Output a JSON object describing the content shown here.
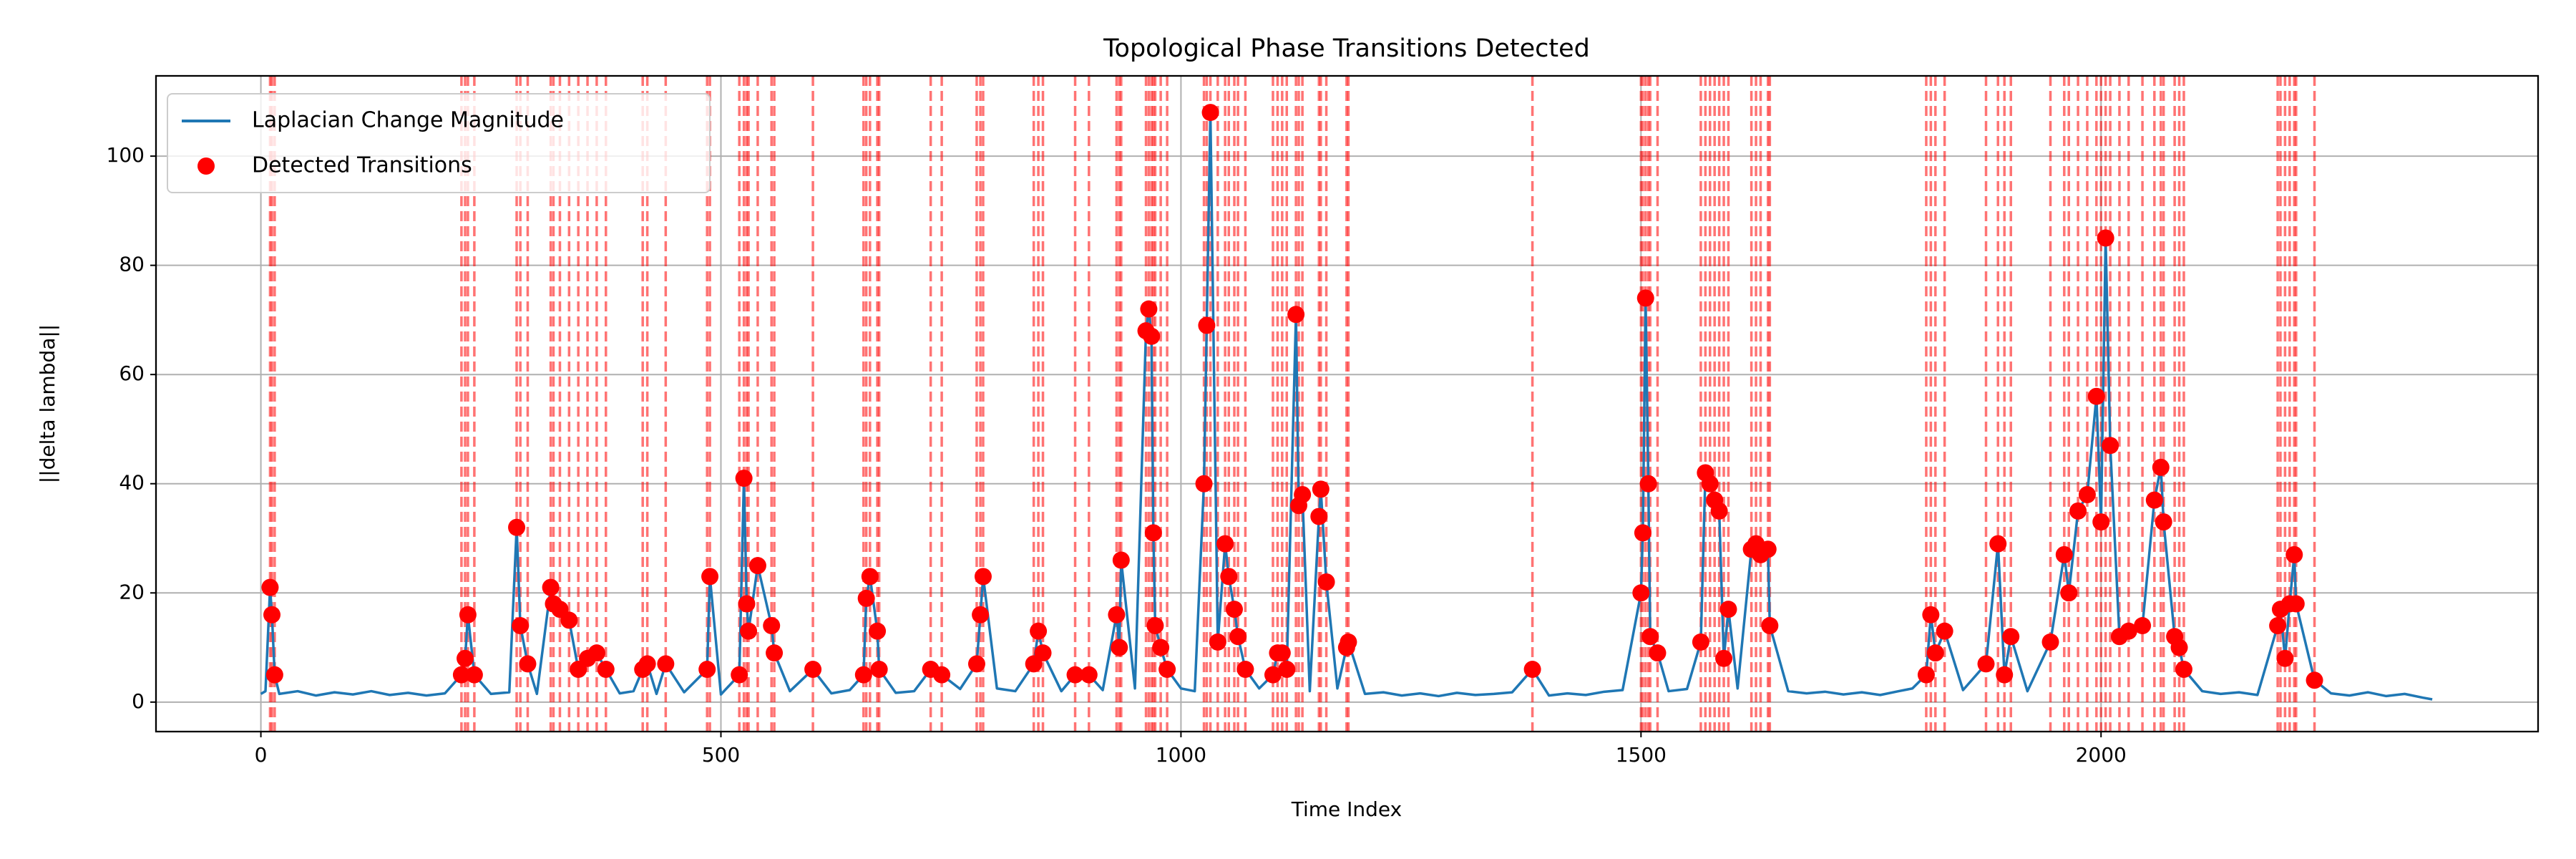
{
  "chart_data": {
    "type": "line",
    "title": "Topological Phase Transitions Detected",
    "xlabel": "Time Index",
    "ylabel": "||delta lambda||",
    "xlim": [
      -114,
      2475
    ],
    "ylim": [
      -5.4,
      114.7
    ],
    "xticks": [
      0,
      500,
      1000,
      1500,
      2000
    ],
    "yticks": [
      0,
      20,
      40,
      60,
      80,
      100
    ],
    "grid": true,
    "legend": "upper left",
    "series": [
      {
        "name": "Laplacian Change Magnitude",
        "type": "line",
        "color": "#1f77b4",
        "x": [
          0,
          5,
          10,
          12,
          15,
          20,
          40,
          60,
          80,
          100,
          120,
          140,
          160,
          180,
          200,
          218,
          222,
          225,
          232,
          250,
          270,
          278,
          282,
          290,
          300,
          315,
          318,
          325,
          335,
          345,
          355,
          365,
          375,
          390,
          405,
          415,
          420,
          430,
          440,
          460,
          485,
          488,
          500,
          520,
          525,
          528,
          530,
          540,
          555,
          558,
          575,
          600,
          620,
          640,
          655,
          658,
          662,
          670,
          672,
          690,
          710,
          728,
          740,
          760,
          778,
          782,
          785,
          800,
          820,
          840,
          845,
          850,
          870,
          885,
          900,
          915,
          930,
          933,
          935,
          950,
          962,
          965,
          968,
          970,
          972,
          978,
          985,
          1000,
          1015,
          1025,
          1028,
          1032,
          1040,
          1048,
          1052,
          1058,
          1062,
          1070,
          1085,
          1100,
          1105,
          1110,
          1115,
          1125,
          1128,
          1132,
          1140,
          1150,
          1152,
          1158,
          1170,
          1180,
          1182,
          1200,
          1220,
          1240,
          1260,
          1280,
          1300,
          1320,
          1340,
          1360,
          1382,
          1400,
          1420,
          1440,
          1460,
          1480,
          1500,
          1502,
          1505,
          1508,
          1510,
          1518,
          1530,
          1550,
          1565,
          1570,
          1575,
          1580,
          1585,
          1590,
          1595,
          1605,
          1620,
          1625,
          1630,
          1638,
          1640,
          1660,
          1680,
          1700,
          1720,
          1740,
          1760,
          1780,
          1795,
          1810,
          1815,
          1820,
          1830,
          1850,
          1875,
          1888,
          1895,
          1902,
          1920,
          1945,
          1960,
          1965,
          1975,
          1985,
          1995,
          2000,
          2005,
          2010,
          2020,
          2030,
          2045,
          2058,
          2065,
          2068,
          2080,
          2085,
          2090,
          2110,
          2130,
          2150,
          2170,
          2192,
          2195,
          2200,
          2205,
          2210,
          2212,
          2232,
          2250,
          2270,
          2290,
          2310,
          2330,
          2350,
          2360
        ],
        "values": [
          1.5,
          2,
          21,
          16,
          5,
          1.5,
          2,
          1.2,
          1.8,
          1.4,
          2,
          1.3,
          1.7,
          1.2,
          1.6,
          5,
          8,
          16,
          5,
          1.5,
          1.8,
          32,
          14,
          7,
          1.5,
          21,
          18,
          17,
          15,
          6,
          8,
          9,
          6,
          1.6,
          2,
          6,
          7,
          1.5,
          7,
          1.8,
          6,
          23,
          1.4,
          5,
          41,
          18,
          13,
          25,
          14,
          9,
          2,
          6,
          1.6,
          2.2,
          5,
          19,
          23,
          13,
          6,
          1.7,
          2,
          6,
          5,
          2.4,
          7,
          16,
          23,
          2.5,
          2,
          7,
          13,
          9,
          2,
          5,
          5,
          2.2,
          16,
          10,
          26,
          2.5,
          68,
          72,
          67,
          31,
          14,
          10,
          6,
          2.5,
          2,
          40,
          69,
          108,
          11,
          29,
          23,
          17,
          12,
          6,
          2.5,
          5,
          9,
          9,
          6,
          71,
          36,
          38,
          2,
          34,
          39,
          22,
          2.5,
          10,
          11,
          1.5,
          1.8,
          1.2,
          1.6,
          1.1,
          1.7,
          1.3,
          1.5,
          1.8,
          6,
          1.2,
          1.6,
          1.3,
          1.9,
          2.2,
          20,
          31,
          74,
          40,
          12,
          9,
          2,
          2.4,
          11,
          42,
          40,
          37,
          35,
          8,
          17,
          2.5,
          28,
          29,
          27,
          28,
          14,
          2,
          1.6,
          1.9,
          1.4,
          1.8,
          1.3,
          2,
          2.5,
          5,
          16,
          9,
          13,
          2.2,
          7,
          29,
          5,
          12,
          2,
          11,
          27,
          20,
          35,
          38,
          56,
          33,
          85,
          47,
          12,
          13,
          14,
          37,
          43,
          33,
          12,
          10,
          6,
          2,
          1.5,
          1.8,
          1.3,
          14,
          17,
          8,
          18,
          27,
          18,
          4,
          1.6,
          1.2,
          1.8,
          1.1,
          1.5,
          0.8,
          0.5
        ]
      },
      {
        "name": "Detected Transitions",
        "type": "scatter",
        "color": "#ff0000",
        "x": [
          10,
          12,
          15,
          218,
          222,
          225,
          232,
          278,
          282,
          290,
          315,
          318,
          325,
          335,
          345,
          355,
          365,
          375,
          415,
          420,
          440,
          485,
          488,
          520,
          525,
          528,
          530,
          540,
          555,
          558,
          600,
          655,
          658,
          662,
          670,
          672,
          728,
          740,
          778,
          782,
          785,
          840,
          845,
          850,
          885,
          900,
          930,
          933,
          935,
          962,
          965,
          968,
          970,
          972,
          978,
          985,
          1025,
          1028,
          1032,
          1040,
          1048,
          1052,
          1058,
          1062,
          1070,
          1100,
          1105,
          1110,
          1115,
          1125,
          1128,
          1132,
          1150,
          1152,
          1158,
          1180,
          1182,
          1382,
          1500,
          1502,
          1505,
          1508,
          1510,
          1518,
          1565,
          1570,
          1575,
          1580,
          1585,
          1590,
          1595,
          1620,
          1625,
          1630,
          1638,
          1640,
          1810,
          1815,
          1820,
          1830,
          1875,
          1888,
          1895,
          1902,
          1945,
          1960,
          1965,
          1975,
          1985,
          1995,
          2000,
          2005,
          2010,
          2020,
          2030,
          2045,
          2058,
          2065,
          2068,
          2080,
          2085,
          2090,
          2192,
          2195,
          2200,
          2205,
          2210,
          2212,
          2232
        ],
        "values": [
          21,
          16,
          5,
          5,
          8,
          16,
          5,
          32,
          14,
          7,
          21,
          18,
          17,
          15,
          6,
          8,
          9,
          6,
          6,
          7,
          7,
          6,
          23,
          5,
          41,
          18,
          13,
          25,
          14,
          9,
          6,
          5,
          19,
          23,
          13,
          6,
          6,
          5,
          7,
          16,
          23,
          7,
          13,
          9,
          5,
          5,
          16,
          10,
          26,
          68,
          72,
          67,
          31,
          14,
          10,
          6,
          40,
          69,
          108,
          11,
          29,
          23,
          17,
          12,
          6,
          5,
          9,
          9,
          6,
          71,
          36,
          38,
          34,
          39,
          22,
          10,
          11,
          6,
          20,
          31,
          74,
          40,
          12,
          9,
          11,
          42,
          40,
          37,
          35,
          8,
          17,
          28,
          29,
          27,
          28,
          14,
          5,
          16,
          9,
          13,
          7,
          29,
          5,
          12,
          11,
          27,
          20,
          35,
          38,
          56,
          33,
          85,
          47,
          12,
          13,
          14,
          37,
          43,
          33,
          12,
          10,
          6,
          14,
          17,
          8,
          18,
          27,
          18,
          4
        ]
      }
    ]
  }
}
